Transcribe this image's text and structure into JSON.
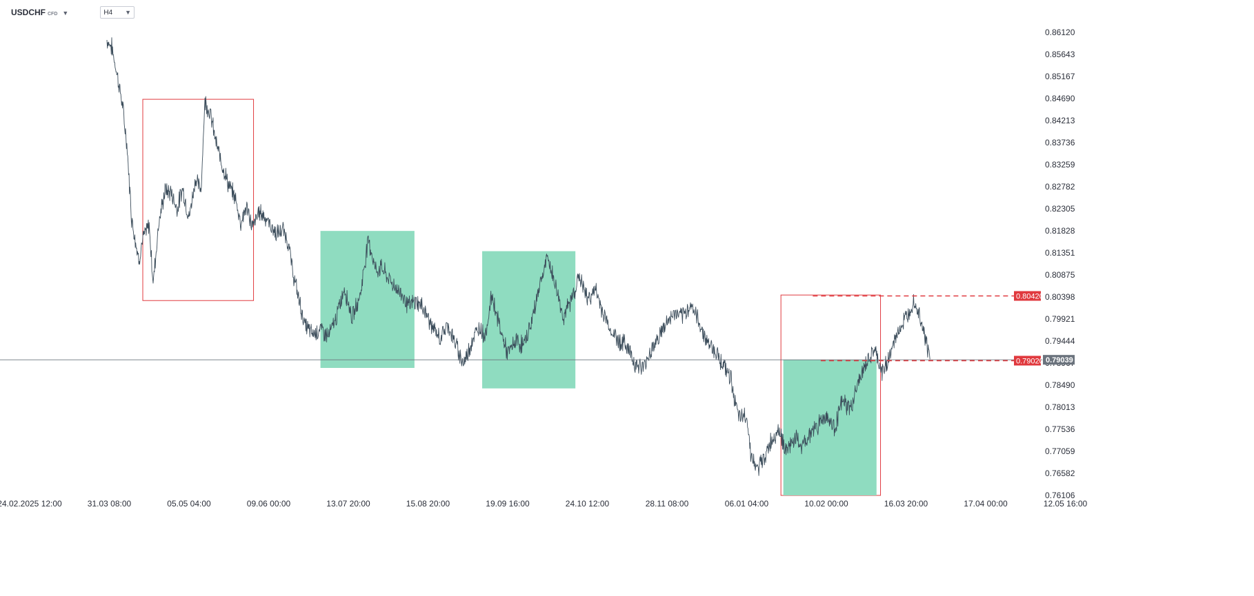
{
  "toolbar": {
    "symbol": "USDCHF",
    "symbol_badge": "CFD",
    "timeframe": "H4"
  },
  "colors": {
    "price_line": "#3c4d5b",
    "zone_fill": "#8fdcc0",
    "box_stroke": "#e0393e",
    "level_line": "#e0393e",
    "level_badge": "#e0393e",
    "current_badge": "#6b737d",
    "crosshair": "#6b737d"
  },
  "chart_data": {
    "type": "line",
    "symbol": "USDCHF",
    "timeframe": "H4",
    "x_tick_labels": [
      "24.02.2025 12:00",
      "31.03 08:00",
      "05.05 04:00",
      "09.06 00:00",
      "13.07 20:00",
      "15.08 20:00",
      "19.09 16:00",
      "24.10 12:00",
      "28.11 08:00",
      "06.01 04:00",
      "10.02 00:00",
      "16.03 20:00",
      "17.04 00:00",
      "12.05 16:00"
    ],
    "y_tick_labels": [
      "0.86120",
      "0.85643",
      "0.85167",
      "0.84690",
      "0.84213",
      "0.83736",
      "0.83259",
      "0.82782",
      "0.82305",
      "0.81828",
      "0.81351",
      "0.80875",
      "0.80398",
      "0.79921",
      "0.79444",
      "0.78967",
      "0.78490",
      "0.78013",
      "0.77536",
      "0.77059",
      "0.76582",
      "0.76106"
    ],
    "ylim": [
      0.76106,
      0.8612
    ],
    "xlim": [
      0,
      13
    ],
    "series": [
      {
        "x": [
          0.97,
          1.03,
          1.1,
          1.16,
          1.22,
          1.28,
          1.32,
          1.37,
          1.42,
          1.5,
          1.55,
          1.62,
          1.7,
          1.78,
          1.85,
          1.92,
          2.0,
          2.08,
          2.15,
          2.2,
          2.27,
          2.35,
          2.42,
          2.5,
          2.58,
          2.65,
          2.72,
          2.8,
          2.88,
          2.95,
          3.02,
          3.1,
          3.18,
          3.25,
          3.3,
          3.38,
          3.45,
          3.55,
          3.65,
          3.75,
          3.85,
          3.95,
          4.05,
          4.15,
          4.25,
          4.35,
          4.42,
          4.48,
          4.55,
          4.62,
          4.68,
          4.75,
          4.85,
          4.95,
          5.05,
          5.15,
          5.25,
          5.35,
          5.45,
          5.55,
          5.65,
          5.72,
          5.8,
          5.9,
          6.0,
          6.1,
          6.2,
          6.3,
          6.4,
          6.5,
          6.6,
          6.7,
          6.8,
          6.9,
          7.0,
          7.1,
          7.2,
          7.3,
          7.4,
          7.5,
          7.6,
          7.7,
          7.8,
          7.9,
          8.0,
          8.1,
          8.2,
          8.3,
          8.4,
          8.5,
          8.6,
          8.7,
          8.8,
          8.9,
          9.0,
          9.05,
          9.12,
          9.2,
          9.3,
          9.4,
          9.5,
          9.6,
          9.7,
          9.8,
          9.9,
          10.0,
          10.1,
          10.2,
          10.3,
          10.4,
          10.5,
          10.6,
          10.7,
          10.8,
          10.9,
          11.0,
          11.1,
          11.2,
          11.3
        ],
        "y": [
          0.8595,
          0.858,
          0.852,
          0.846,
          0.837,
          0.821,
          0.817,
          0.812,
          0.8165,
          0.8195,
          0.807,
          0.82,
          0.827,
          0.8265,
          0.823,
          0.8275,
          0.821,
          0.8295,
          0.827,
          0.8465,
          0.8435,
          0.8365,
          0.8325,
          0.828,
          0.8255,
          0.82,
          0.8235,
          0.819,
          0.8225,
          0.8215,
          0.8195,
          0.8175,
          0.8185,
          0.8155,
          0.8095,
          0.8035,
          0.798,
          0.796,
          0.797,
          0.7955,
          0.7995,
          0.806,
          0.7995,
          0.8045,
          0.8165,
          0.8095,
          0.8105,
          0.8085,
          0.807,
          0.8055,
          0.8045,
          0.802,
          0.803,
          0.8015,
          0.7975,
          0.795,
          0.798,
          0.7935,
          0.7895,
          0.7945,
          0.7975,
          0.7955,
          0.8045,
          0.7975,
          0.7915,
          0.7945,
          0.7935,
          0.7985,
          0.8065,
          0.8125,
          0.8065,
          0.7995,
          0.8035,
          0.8085,
          0.8035,
          0.8055,
          0.8005,
          0.7965,
          0.7945,
          0.7935,
          0.7895,
          0.7885,
          0.7925,
          0.7955,
          0.7985,
          0.8005,
          0.7995,
          0.8025,
          0.7985,
          0.7945,
          0.7925,
          0.7895,
          0.7865,
          0.7775,
          0.7785,
          0.7705,
          0.7665,
          0.7685,
          0.7725,
          0.7755,
          0.7705,
          0.7735,
          0.7715,
          0.7745,
          0.7765,
          0.7785,
          0.7755,
          0.7815,
          0.7795,
          0.7855,
          0.7895,
          0.7925,
          0.7875,
          0.7915,
          0.7965,
          0.7995,
          0.8035,
          0.7985,
          0.7905
        ]
      }
    ],
    "zones": [
      {
        "kind": "outline",
        "x0": 1.42,
        "x1": 2.81,
        "y0": 0.8032,
        "y1": 0.84673
      },
      {
        "kind": "filled",
        "x0": 3.65,
        "x1": 4.83,
        "y0": 0.78863,
        "y1": 0.81826
      },
      {
        "kind": "filled",
        "x0": 5.68,
        "x1": 6.85,
        "y0": 0.7842,
        "y1": 0.81388
      },
      {
        "kind": "outline",
        "x0": 9.43,
        "x1": 10.68,
        "y0": 0.76106,
        "y1": 0.8044
      },
      {
        "kind": "filled",
        "x0": 9.46,
        "x1": 10.63,
        "y0": 0.76106,
        "y1": 0.79039
      }
    ],
    "levels": [
      {
        "value": "0.80420",
        "x_start": 9.83
      },
      {
        "value": "0.79020",
        "x_start": 9.93
      }
    ],
    "current_price": "0.79039",
    "grid": false,
    "legend": "none"
  }
}
